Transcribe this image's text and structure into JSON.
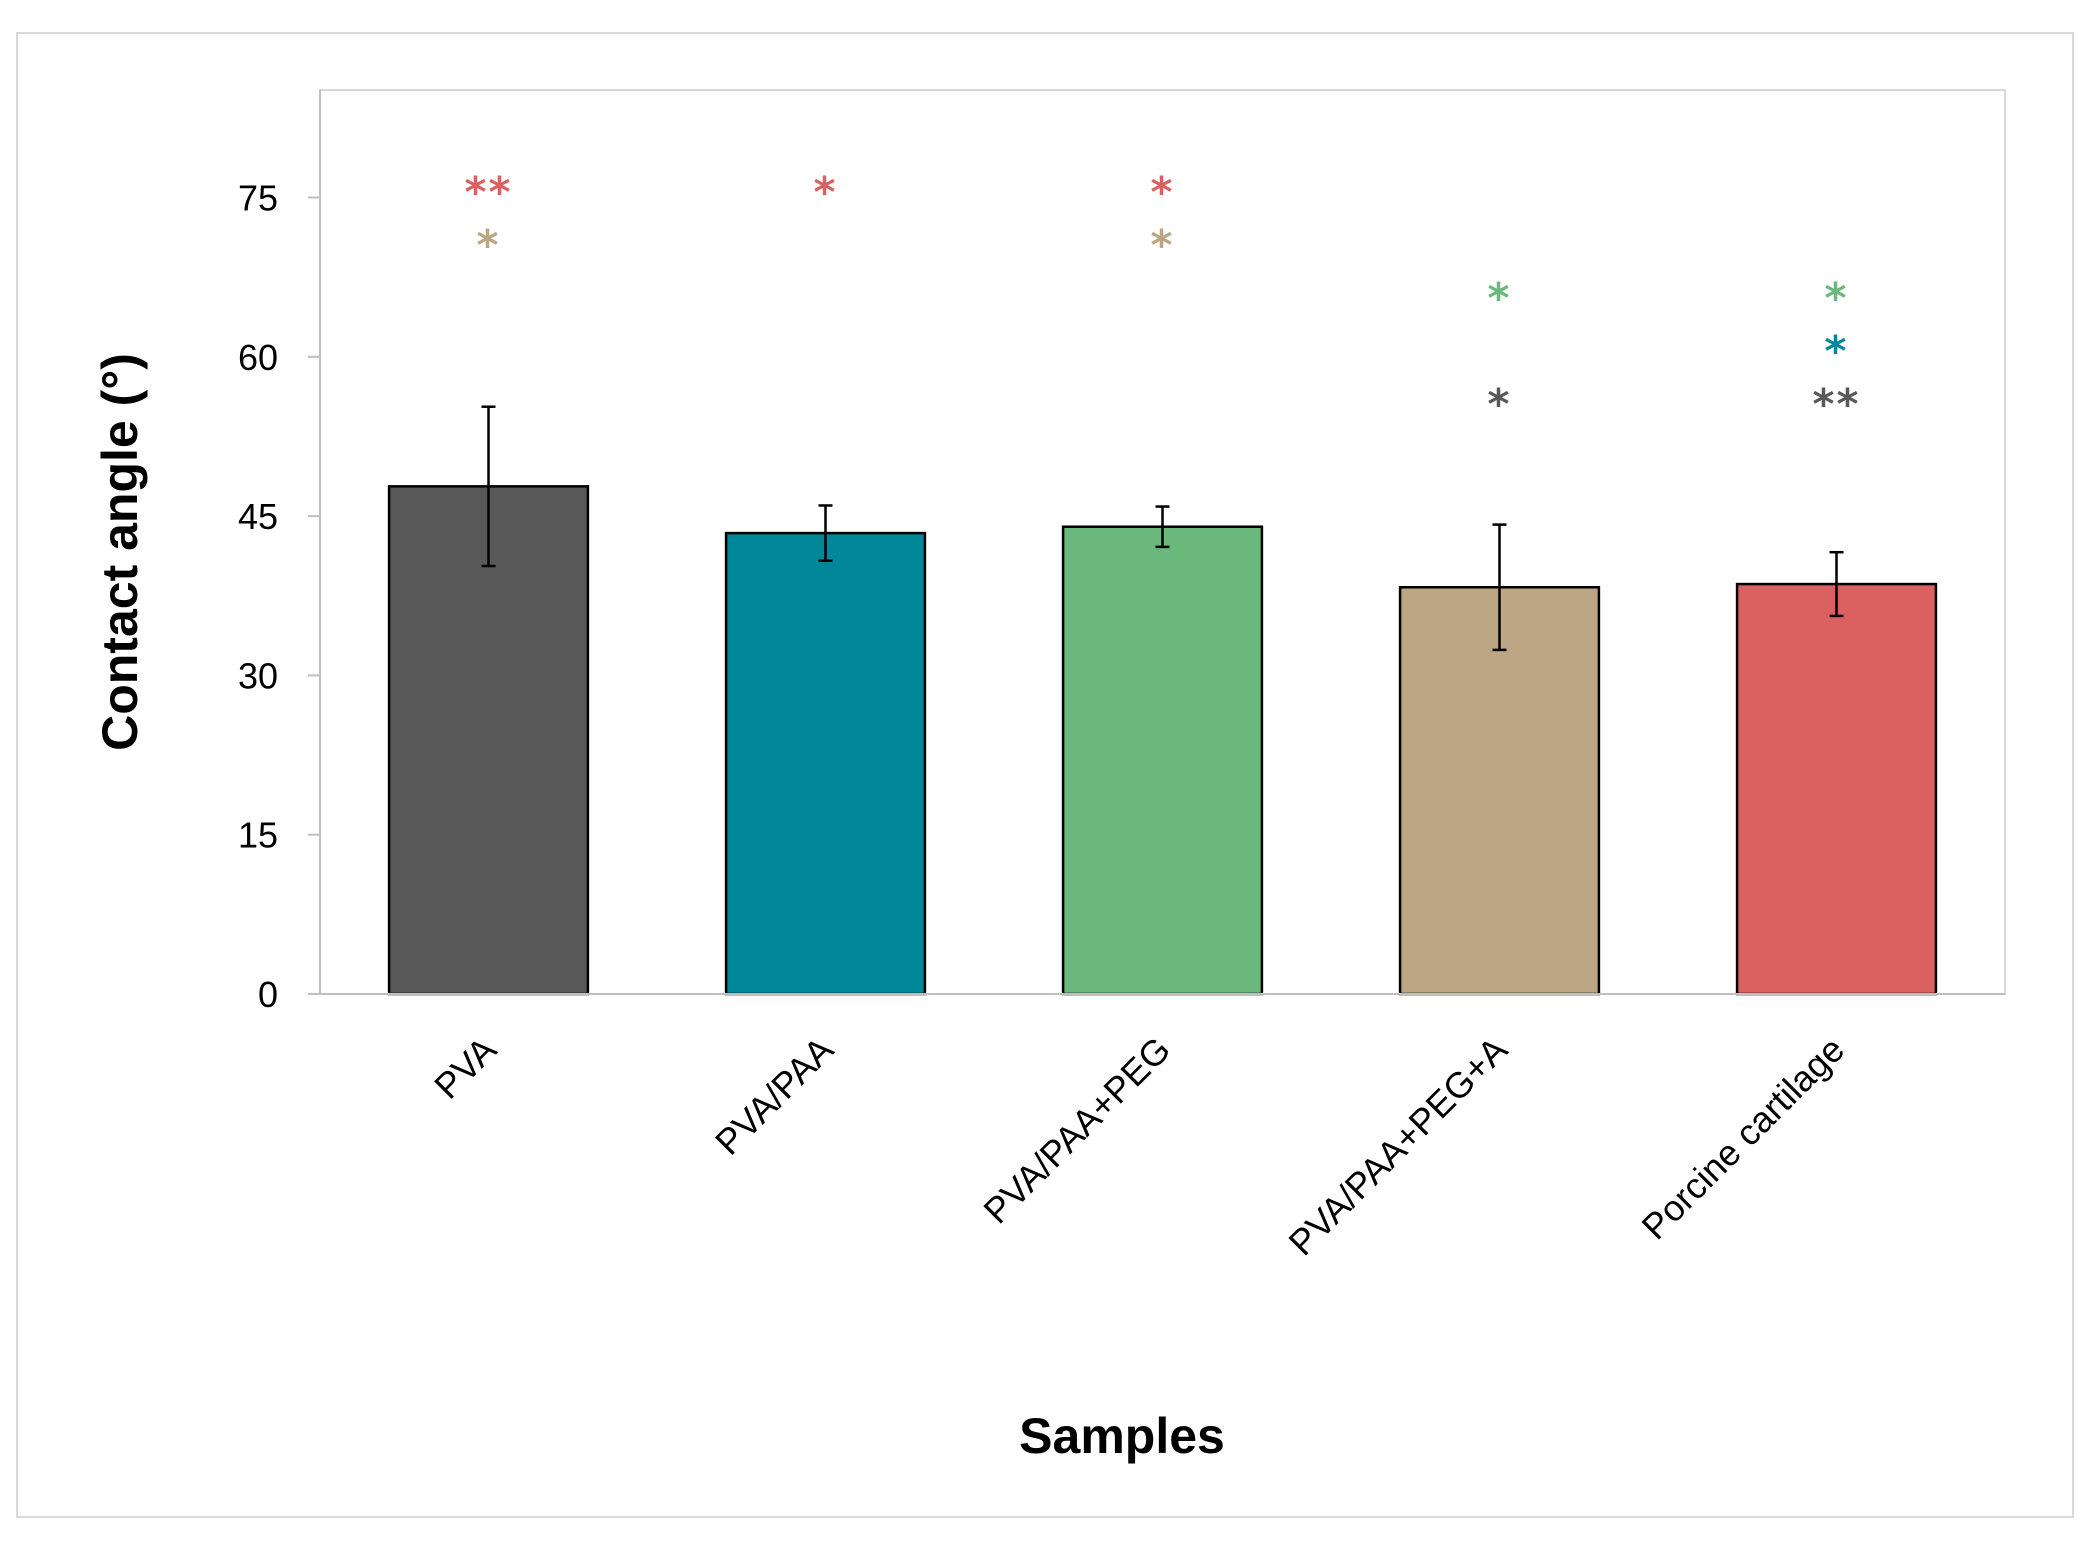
{
  "chart_data": {
    "type": "bar",
    "title": "",
    "xlabel": "Samples",
    "ylabel": "Contact angle (°)",
    "ylim": [
      0,
      85
    ],
    "yticks": [
      0,
      15,
      30,
      45,
      60,
      75
    ],
    "grid": false,
    "categories": [
      "PVA",
      "PVA/PAA",
      "PVA/PAA+PEG",
      "PVA/PAA+PEG+A",
      "Porcine cartilage"
    ],
    "values": [
      47.8,
      43.4,
      44.0,
      38.3,
      38.6
    ],
    "error": [
      7.5,
      2.6,
      1.9,
      5.9,
      3.0
    ],
    "colors": [
      "#595959",
      "#00879a",
      "#6ab87c",
      "#bba583",
      "#db6161"
    ],
    "significance": [
      {
        "category": "PVA",
        "rows": [
          {
            "marks": "**",
            "color": "#db6161",
            "y": 77
          },
          {
            "marks": "*",
            "color": "#bba583",
            "y": 72
          }
        ]
      },
      {
        "category": "PVA/PAA",
        "rows": [
          {
            "marks": "*",
            "color": "#db6161",
            "y": 77
          }
        ]
      },
      {
        "category": "PVA/PAA+PEG",
        "rows": [
          {
            "marks": "*",
            "color": "#db6161",
            "y": 77
          },
          {
            "marks": "*",
            "color": "#bba583",
            "y": 72
          }
        ]
      },
      {
        "category": "PVA/PAA+PEG+A",
        "rows": [
          {
            "marks": "*",
            "color": "#6ab87c",
            "y": 67
          },
          {
            "marks": "*",
            "color": "#595959",
            "y": 57
          }
        ]
      },
      {
        "category": "Porcine cartilage",
        "rows": [
          {
            "marks": "*",
            "color": "#6ab87c",
            "y": 67
          },
          {
            "marks": "*",
            "color": "#00879a",
            "y": 62
          },
          {
            "marks": "**",
            "color": "#595959",
            "y": 57
          }
        ]
      }
    ]
  }
}
